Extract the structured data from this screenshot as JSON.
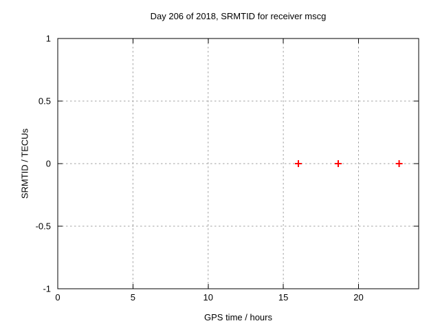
{
  "chart_data": {
    "type": "scatter",
    "title": "Day 206 of 2018, SRMTID for receiver mscg",
    "xlabel": "GPS time / hours",
    "ylabel": "SRMTID / TECUs",
    "xlim": [
      0,
      24
    ],
    "ylim": [
      -1,
      1
    ],
    "x_ticks": [
      0,
      5,
      10,
      15,
      20
    ],
    "x_tick_labels": [
      "0",
      "5",
      "10",
      "15",
      "20"
    ],
    "y_ticks": [
      -1,
      -0.5,
      0,
      0.5,
      1
    ],
    "y_tick_labels": [
      "-1",
      "-0.5",
      "0",
      "0.5",
      "1"
    ],
    "grid": true,
    "legend_position": "none",
    "series": [
      {
        "name": "SRMTID",
        "marker": "plus",
        "color": "#ff0000",
        "points": [
          {
            "x": 16.0,
            "y": 0.0
          },
          {
            "x": 18.65,
            "y": 0.0
          },
          {
            "x": 22.7,
            "y": 0.0
          }
        ]
      }
    ],
    "colors": {
      "background": "#ffffff",
      "axis": "#000000",
      "grid": "#a0a0a0",
      "text": "#000000",
      "marker": "#ff0000"
    }
  }
}
